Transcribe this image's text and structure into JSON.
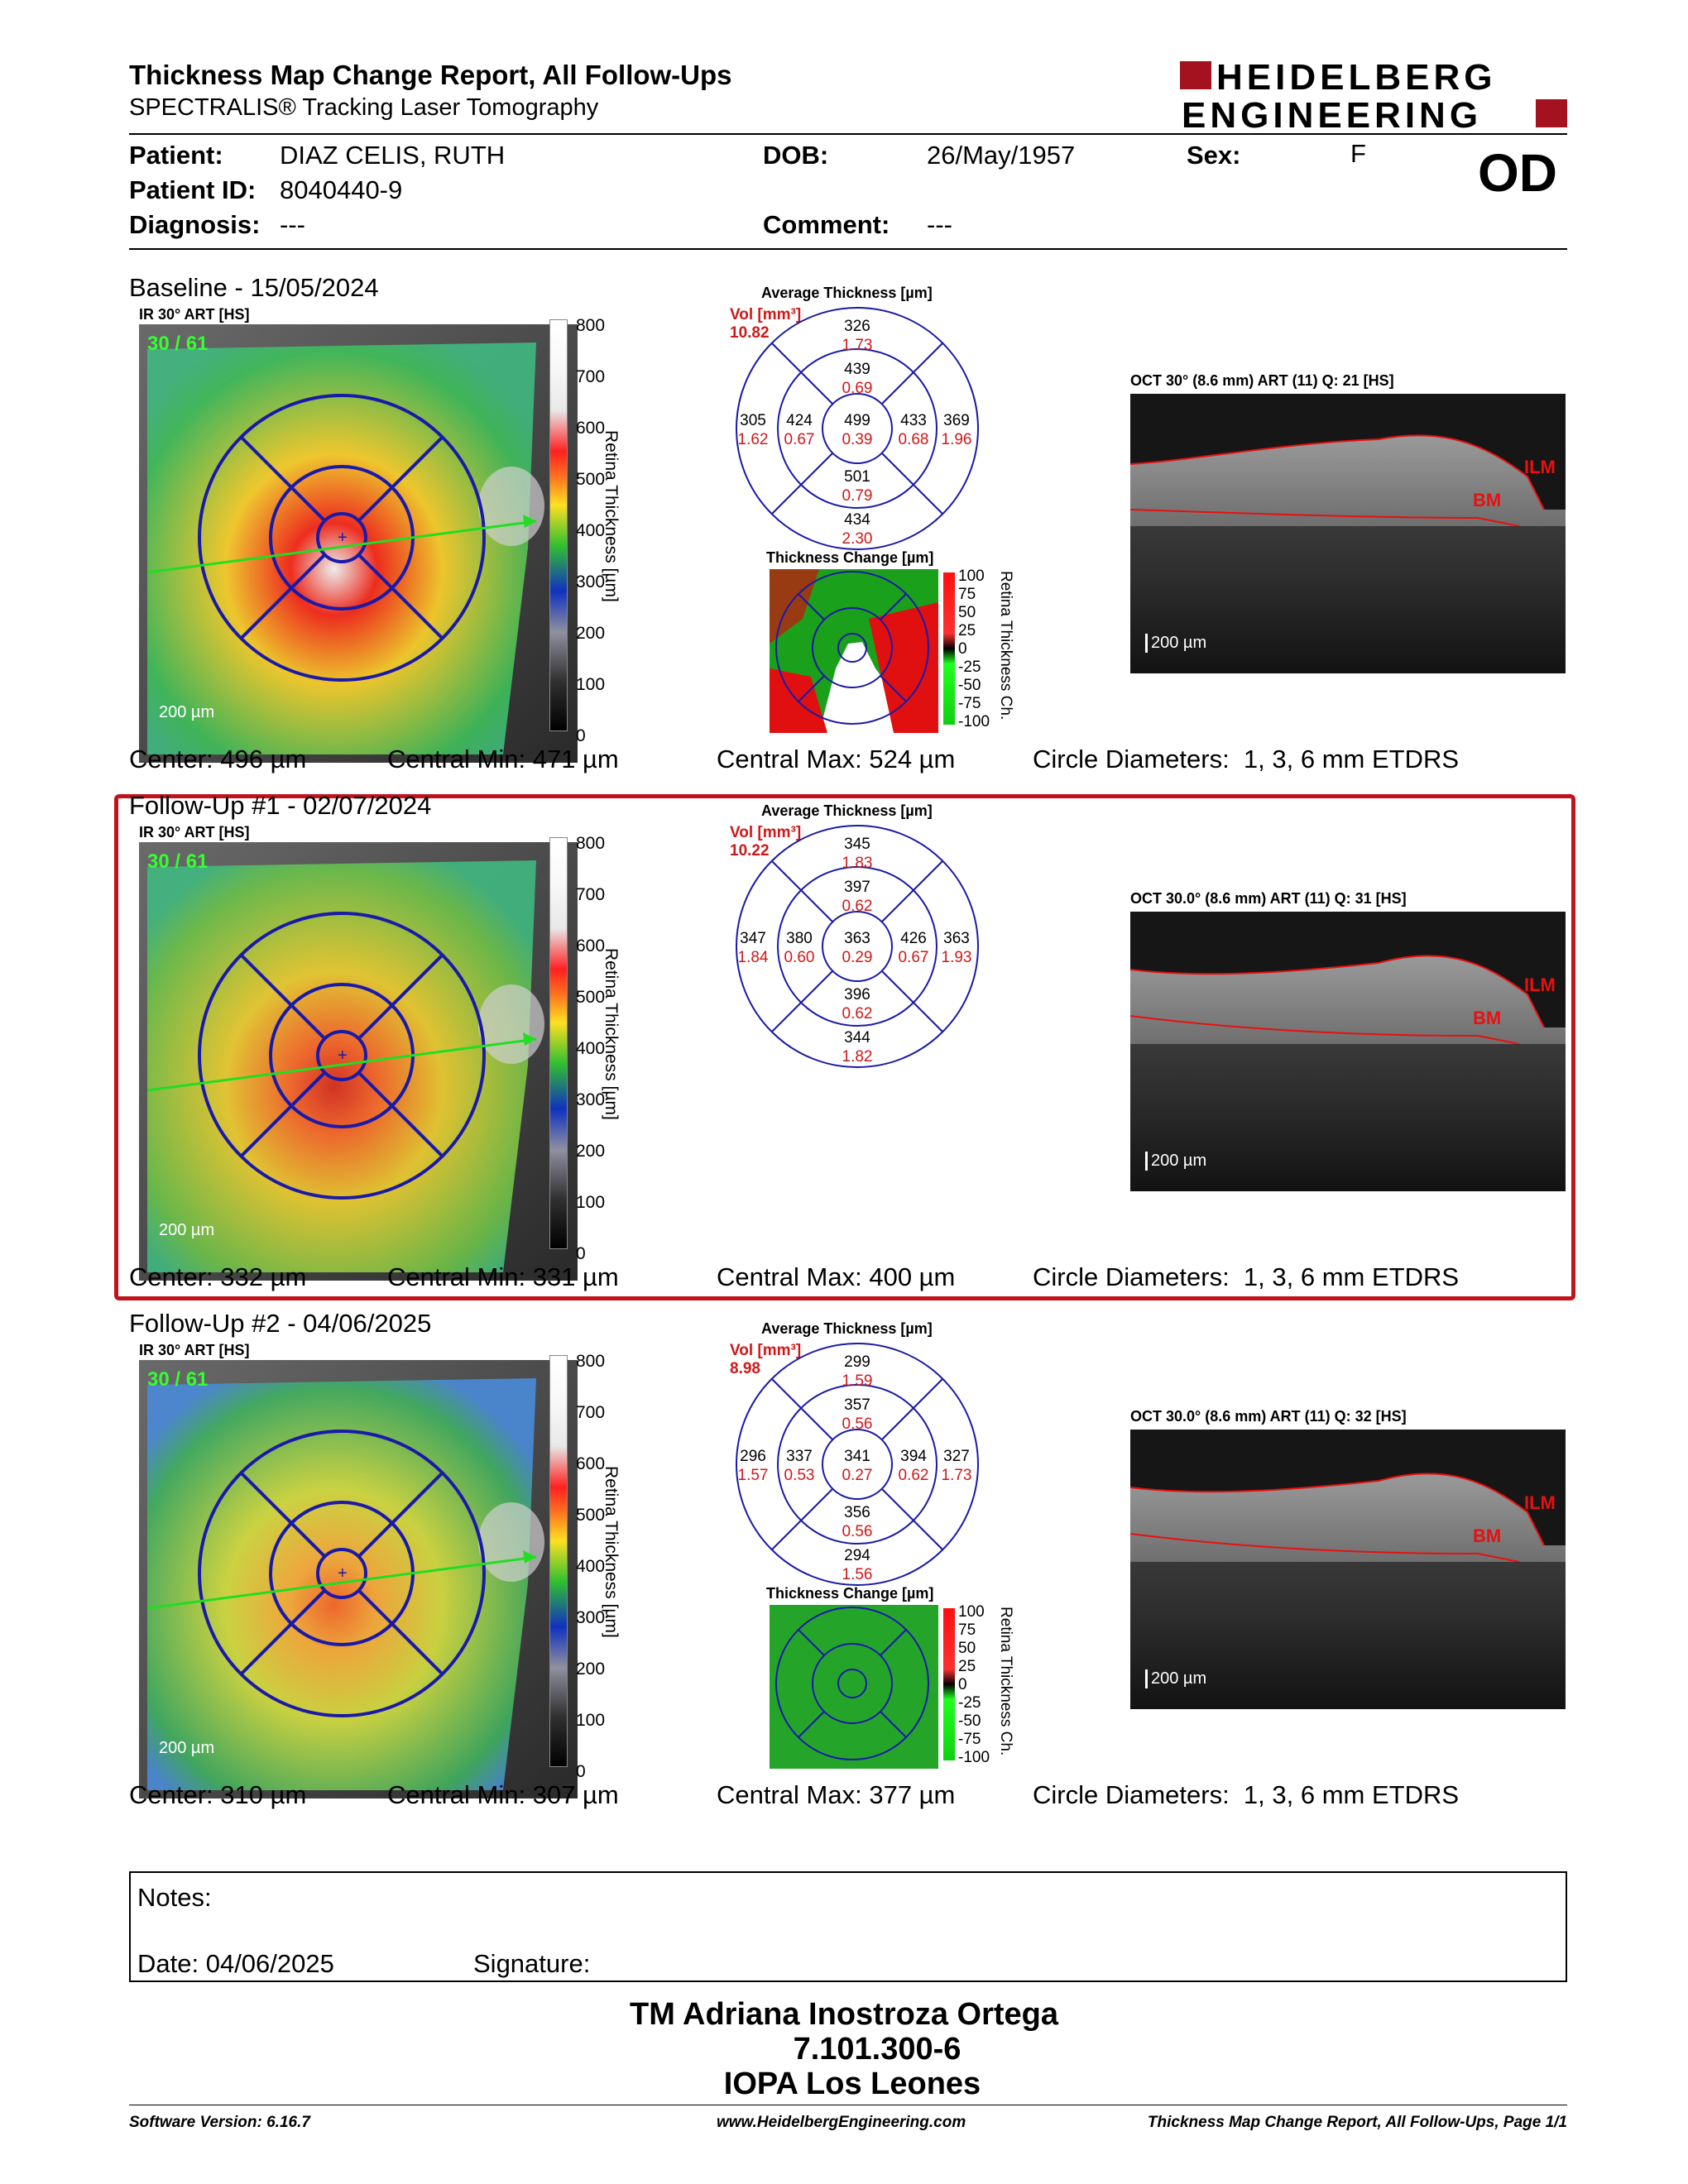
{
  "header": {
    "title": "Thickness Map Change Report, All Follow-Ups",
    "subtitle": "SPECTRALIS® Tracking Laser Tomography",
    "logo_line1": "HEIDELBERG",
    "logo_line2": "ENGINEERING"
  },
  "patient": {
    "name_label": "Patient:",
    "name": "DIAZ CELIS, RUTH",
    "id_label": "Patient ID:",
    "id": "8040440-9",
    "diagnosis_label": "Diagnosis:",
    "diagnosis": "---",
    "dob_label": "DOB:",
    "dob": "26/May/1957",
    "comment_label": "Comment:",
    "comment": "---",
    "sex_label": "Sex:",
    "sex": "F",
    "eye": "OD"
  },
  "sections": [
    {
      "title": "Baseline - 15/05/2024",
      "ir_label": "IR 30° ART [HS]",
      "ir_overlay": "30 / 61",
      "scale_label": "200 µm",
      "colorbar_ticks": [
        "800",
        "700",
        "600",
        "500",
        "400",
        "300",
        "200",
        "100",
        "0"
      ],
      "colorbar_title": "Retina Thickness [µm]",
      "avg_title": "Average Thickness [µm]",
      "vol_label": "Vol [mm³]",
      "vol_value": "10.82",
      "etdrs": {
        "outer_sup": "326",
        "outer_sup_vol": "1.73",
        "inner_sup": "439",
        "inner_sup_vol": "0.69",
        "outer_temp": "305",
        "outer_temp_vol": "1.62",
        "inner_temp": "424",
        "inner_temp_vol": "0.67",
        "center": "499",
        "center_vol": "0.39",
        "inner_nas": "433",
        "inner_nas_vol": "0.68",
        "outer_nas": "369",
        "outer_nas_vol": "1.96",
        "inner_inf": "501",
        "inner_inf_vol": "0.79",
        "outer_inf": "434",
        "outer_inf_vol": "2.30"
      },
      "change_title": "Thickness Change [µm]",
      "change_ticks": [
        "100",
        "75",
        "50",
        "25",
        "0",
        "-25",
        "-50",
        "-75",
        "-100"
      ],
      "change_bar_title": "Retina Thickness Ch.",
      "oct_label": "OCT 30° (8.6 mm) ART (11) Q: 21 [HS]",
      "oct_ilm": "ILM",
      "oct_bm": "BM",
      "oct_scale": "200 µm",
      "center": "Center: 496 µm",
      "central_min": "Central Min: 471 µm",
      "central_max": "Central Max: 524 µm",
      "circle_diam": "Circle Diameters:  1, 3, 6 mm ETDRS"
    },
    {
      "title": "Follow-Up #1 - 02/07/2024",
      "ir_label": "IR 30° ART [HS]",
      "ir_overlay": "30 / 61",
      "scale_label": "200 µm",
      "colorbar_ticks": [
        "800",
        "700",
        "600",
        "500",
        "400",
        "300",
        "200",
        "100",
        "0"
      ],
      "colorbar_title": "Retina Thickness [µm]",
      "avg_title": "Average Thickness [µm]",
      "vol_label": "Vol [mm³]",
      "vol_value": "10.22",
      "etdrs": {
        "outer_sup": "345",
        "outer_sup_vol": "1.83",
        "inner_sup": "397",
        "inner_sup_vol": "0.62",
        "outer_temp": "347",
        "outer_temp_vol": "1.84",
        "inner_temp": "380",
        "inner_temp_vol": "0.60",
        "center": "363",
        "center_vol": "0.29",
        "inner_nas": "426",
        "inner_nas_vol": "0.67",
        "outer_nas": "363",
        "outer_nas_vol": "1.93",
        "inner_inf": "396",
        "inner_inf_vol": "0.62",
        "outer_inf": "344",
        "outer_inf_vol": "1.82"
      },
      "oct_label": "OCT 30.0° (8.6 mm) ART (11) Q: 31 [HS]",
      "oct_ilm": "ILM",
      "oct_bm": "BM",
      "oct_scale": "200 µm",
      "center": "Center: 332 µm",
      "central_min": "Central Min: 331 µm",
      "central_max": "Central Max: 400 µm",
      "circle_diam": "Circle Diameters:  1, 3, 6 mm ETDRS"
    },
    {
      "title": "Follow-Up #2 - 04/06/2025",
      "ir_label": "IR 30° ART [HS]",
      "ir_overlay": "30 / 61",
      "scale_label": "200 µm",
      "colorbar_ticks": [
        "800",
        "700",
        "600",
        "500",
        "400",
        "300",
        "200",
        "100",
        "0"
      ],
      "colorbar_title": "Retina Thickness [µm]",
      "avg_title": "Average Thickness [µm]",
      "vol_label": "Vol [mm³]",
      "vol_value": "8.98",
      "etdrs": {
        "outer_sup": "299",
        "outer_sup_vol": "1.59",
        "inner_sup": "357",
        "inner_sup_vol": "0.56",
        "outer_temp": "296",
        "outer_temp_vol": "1.57",
        "inner_temp": "337",
        "inner_temp_vol": "0.53",
        "center": "341",
        "center_vol": "0.27",
        "inner_nas": "394",
        "inner_nas_vol": "0.62",
        "outer_nas": "327",
        "outer_nas_vol": "1.73",
        "inner_inf": "356",
        "inner_inf_vol": "0.56",
        "outer_inf": "294",
        "outer_inf_vol": "1.56"
      },
      "change_title": "Thickness Change [µm]",
      "change_ticks": [
        "100",
        "75",
        "50",
        "25",
        "0",
        "-25",
        "-50",
        "-75",
        "-100"
      ],
      "change_bar_title": "Retina Thickness Ch.",
      "oct_label": "OCT 30.0° (8.6 mm) ART (11) Q: 32 [HS]",
      "oct_ilm": "ILM",
      "oct_bm": "BM",
      "oct_scale": "200 µm",
      "center": "Center: 310 µm",
      "central_min": "Central Min: 307 µm",
      "central_max": "Central Max: 377 µm",
      "circle_diam": "Circle Diameters:  1, 3, 6 mm ETDRS"
    }
  ],
  "notes": {
    "notes_label": "Notes:",
    "date_label": "Date: 04/06/2025",
    "signature_label": "Signature:"
  },
  "signature_block": {
    "name": "TM Adriana Inostroza Ortega",
    "id": "7.101.300-6",
    "org": "IOPA Los Leones"
  },
  "footer": {
    "software": "Software Version: 6.16.7",
    "website": "www.HeidelbergEngineering.com",
    "page": "Thickness Map Change Report, All Follow-Ups, Page 1/1"
  },
  "colors": {
    "accent_red": "#c0141c",
    "etdrs_blue": "#1a1aa8",
    "vol_red": "#d01818"
  }
}
